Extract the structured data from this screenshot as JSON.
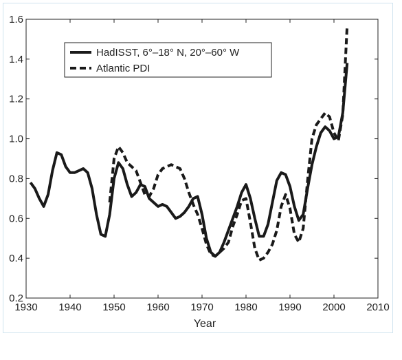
{
  "chart_data": {
    "type": "line",
    "title": "",
    "xlabel": "Year",
    "ylabel": "",
    "xlim": [
      1930,
      2010
    ],
    "ylim": [
      0.2,
      1.6
    ],
    "xticks": [
      1930,
      1940,
      1950,
      1960,
      1970,
      1980,
      1990,
      2000,
      2010
    ],
    "yticks": [
      0.2,
      0.4,
      0.6,
      0.8,
      1.0,
      1.2,
      1.4,
      1.6
    ],
    "xtick_labels": [
      "1930",
      "1940",
      "1950",
      "1960",
      "1970",
      "1980",
      "1990",
      "2000",
      "2010"
    ],
    "ytick_labels": [
      "0.2",
      "0.4",
      "0.6",
      "0.8",
      "1.0",
      "1.2",
      "1.4",
      "1.6"
    ],
    "grid": false,
    "legend_position": "top-left",
    "series": [
      {
        "name": "HadISST, 6°–18° N, 20°–60° W",
        "style": "solid",
        "color": "#1a1a1a",
        "x": [
          1931,
          1932,
          1933,
          1934,
          1935,
          1936,
          1937,
          1938,
          1939,
          1940,
          1941,
          1942,
          1943,
          1944,
          1945,
          1946,
          1947,
          1948,
          1949,
          1950,
          1951,
          1952,
          1953,
          1954,
          1955,
          1956,
          1957,
          1958,
          1959,
          1960,
          1961,
          1962,
          1963,
          1964,
          1965,
          1966,
          1967,
          1968,
          1969,
          1970,
          1971,
          1972,
          1973,
          1974,
          1975,
          1976,
          1977,
          1978,
          1979,
          1980,
          1981,
          1982,
          1983,
          1984,
          1985,
          1986,
          1987,
          1988,
          1989,
          1990,
          1991,
          1992,
          1993,
          1994,
          1995,
          1996,
          1997,
          1998,
          1999,
          2000,
          2001,
          2002,
          2003
        ],
        "y": [
          0.78,
          0.75,
          0.7,
          0.66,
          0.72,
          0.84,
          0.93,
          0.92,
          0.86,
          0.83,
          0.83,
          0.84,
          0.85,
          0.83,
          0.75,
          0.62,
          0.52,
          0.51,
          0.62,
          0.8,
          0.88,
          0.85,
          0.77,
          0.71,
          0.73,
          0.77,
          0.76,
          0.7,
          0.68,
          0.66,
          0.67,
          0.66,
          0.63,
          0.6,
          0.61,
          0.63,
          0.66,
          0.7,
          0.71,
          0.62,
          0.5,
          0.43,
          0.41,
          0.43,
          0.48,
          0.54,
          0.6,
          0.66,
          0.73,
          0.77,
          0.7,
          0.6,
          0.51,
          0.51,
          0.57,
          0.68,
          0.79,
          0.83,
          0.82,
          0.76,
          0.66,
          0.59,
          0.62,
          0.75,
          0.87,
          0.96,
          1.03,
          1.06,
          1.04,
          1.0,
          1.01,
          1.13,
          1.38
        ]
      },
      {
        "name": "Atlantic PDI",
        "style": "dashed",
        "color": "#1a1a1a",
        "x": [
          1949,
          1950,
          1951,
          1952,
          1953,
          1954,
          1955,
          1956,
          1957,
          1958,
          1959,
          1960,
          1961,
          1962,
          1963,
          1964,
          1965,
          1966,
          1967,
          1968,
          1969,
          1970,
          1971,
          1972,
          1973,
          1974,
          1975,
          1976,
          1977,
          1978,
          1979,
          1980,
          1981,
          1982,
          1983,
          1984,
          1985,
          1986,
          1987,
          1988,
          1989,
          1990,
          1991,
          1992,
          1993,
          1994,
          1995,
          1996,
          1997,
          1998,
          1999,
          2000,
          2001,
          2002,
          2003
        ],
        "y": [
          0.68,
          0.9,
          0.96,
          0.93,
          0.88,
          0.86,
          0.84,
          0.78,
          0.72,
          0.71,
          0.75,
          0.82,
          0.85,
          0.86,
          0.87,
          0.86,
          0.85,
          0.8,
          0.73,
          0.67,
          0.62,
          0.55,
          0.47,
          0.42,
          0.41,
          0.43,
          0.45,
          0.48,
          0.56,
          0.62,
          0.69,
          0.7,
          0.58,
          0.45,
          0.39,
          0.4,
          0.43,
          0.47,
          0.54,
          0.66,
          0.72,
          0.65,
          0.52,
          0.48,
          0.55,
          0.79,
          1.0,
          1.07,
          1.1,
          1.13,
          1.11,
          1.03,
          0.99,
          1.12,
          1.57
        ]
      }
    ]
  }
}
